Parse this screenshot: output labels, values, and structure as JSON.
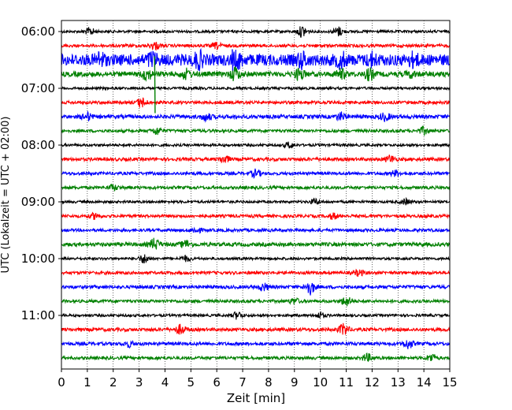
{
  "chart_data": {
    "type": "line",
    "title": "",
    "xlabel": "Zeit  [min]",
    "ylabel": "UTC (Lokalzeit = UTC + 02:00)",
    "xlim": [
      0,
      15
    ],
    "x_ticks": [
      "0",
      "1",
      "2",
      "3",
      "4",
      "5",
      "6",
      "7",
      "8",
      "9",
      "10",
      "11",
      "12",
      "13",
      "14",
      "15"
    ],
    "y_ticks": [
      {
        "label": "06:00",
        "row": 0
      },
      {
        "label": "07:00",
        "row": 4
      },
      {
        "label": "08:00",
        "row": 8
      },
      {
        "label": "09:00",
        "row": 12
      },
      {
        "label": "10:00",
        "row": 16
      },
      {
        "label": "11:00",
        "row": 20
      }
    ],
    "grid": "vertical dotted at each minute",
    "colors": [
      "#000000",
      "#ff0000",
      "#0000ff",
      "#008000"
    ],
    "series": [
      {
        "start": "06:00",
        "color": "#000000",
        "amplitude": 1.0,
        "bursts": [
          [
            1.1,
            2.0
          ],
          [
            9.3,
            3.0
          ],
          [
            10.7,
            2.5
          ]
        ]
      },
      {
        "start": "06:15",
        "color": "#ff0000",
        "amplitude": 1.2,
        "bursts": [
          [
            3.6,
            2.0
          ],
          [
            6.0,
            1.5
          ]
        ]
      },
      {
        "start": "06:30",
        "color": "#0000ff",
        "amplitude": 4.5,
        "bursts": [
          [
            1.5,
            3.0
          ],
          [
            3.5,
            3.0
          ],
          [
            5.3,
            3.5
          ],
          [
            6.8,
            3.2
          ],
          [
            9.3,
            3.0
          ],
          [
            10.8,
            3.0
          ],
          [
            12.0,
            2.5
          ],
          [
            13.6,
            2.5
          ]
        ]
      },
      {
        "start": "06:45",
        "color": "#008000",
        "amplitude": 2.0,
        "bursts": [
          [
            3.3,
            3.0
          ],
          [
            4.8,
            2.5
          ],
          [
            6.7,
            3.5
          ],
          [
            9.2,
            3.0
          ],
          [
            10.8,
            2.5
          ],
          [
            11.9,
            3.0
          ],
          [
            13.5,
            1.5
          ]
        ]
      },
      {
        "start": "07:00",
        "color": "#000000",
        "amplitude": 1.0,
        "bursts": []
      },
      {
        "start": "07:15",
        "color": "#ff0000",
        "amplitude": 1.2,
        "bursts": [
          [
            3.1,
            2.5
          ]
        ]
      },
      {
        "start": "07:30",
        "color": "#0000ff",
        "amplitude": 1.5,
        "bursts": [
          [
            1.0,
            2.0
          ],
          [
            5.6,
            2.0
          ],
          [
            10.8,
            2.0
          ],
          [
            12.5,
            2.0
          ]
        ]
      },
      {
        "start": "07:45",
        "color": "#008000",
        "amplitude": 1.2,
        "bursts": [
          [
            3.7,
            2.0
          ],
          [
            14.0,
            2.0
          ]
        ]
      },
      {
        "start": "08:00",
        "color": "#000000",
        "amplitude": 1.0,
        "bursts": [
          [
            8.8,
            1.5
          ]
        ]
      },
      {
        "start": "08:15",
        "color": "#ff0000",
        "amplitude": 1.3,
        "bursts": [
          [
            6.3,
            2.0
          ],
          [
            12.7,
            2.0
          ]
        ]
      },
      {
        "start": "08:30",
        "color": "#0000ff",
        "amplitude": 1.2,
        "bursts": [
          [
            7.5,
            2.0
          ],
          [
            12.9,
            1.5
          ]
        ]
      },
      {
        "start": "08:45",
        "color": "#008000",
        "amplitude": 1.2,
        "bursts": [
          [
            2.0,
            1.5
          ]
        ]
      },
      {
        "start": "09:00",
        "color": "#000000",
        "amplitude": 1.0,
        "bursts": [
          [
            9.8,
            1.5
          ],
          [
            13.3,
            1.5
          ]
        ]
      },
      {
        "start": "09:15",
        "color": "#ff0000",
        "amplitude": 1.2,
        "bursts": [
          [
            1.3,
            1.5
          ],
          [
            10.5,
            1.5
          ]
        ]
      },
      {
        "start": "09:30",
        "color": "#0000ff",
        "amplitude": 1.2,
        "bursts": [
          [
            5.2,
            1.5
          ]
        ]
      },
      {
        "start": "09:45",
        "color": "#008000",
        "amplitude": 1.5,
        "bursts": [
          [
            3.6,
            3.0
          ],
          [
            4.8,
            2.0
          ]
        ]
      },
      {
        "start": "10:00",
        "color": "#000000",
        "amplitude": 1.0,
        "bursts": [
          [
            3.2,
            2.5
          ],
          [
            4.8,
            1.5
          ]
        ]
      },
      {
        "start": "10:15",
        "color": "#ff0000",
        "amplitude": 1.2,
        "bursts": [
          [
            11.5,
            1.5
          ]
        ]
      },
      {
        "start": "10:30",
        "color": "#0000ff",
        "amplitude": 1.3,
        "bursts": [
          [
            7.8,
            2.0
          ],
          [
            9.6,
            4.0
          ]
        ]
      },
      {
        "start": "10:45",
        "color": "#008000",
        "amplitude": 1.2,
        "bursts": [
          [
            11.0,
            2.5
          ],
          [
            9.0,
            1.5
          ]
        ]
      },
      {
        "start": "11:00",
        "color": "#000000",
        "amplitude": 1.0,
        "bursts": [
          [
            6.8,
            2.0
          ],
          [
            10.0,
            1.5
          ]
        ]
      },
      {
        "start": "11:15",
        "color": "#ff0000",
        "amplitude": 1.3,
        "bursts": [
          [
            4.6,
            2.5
          ],
          [
            10.9,
            3.0
          ]
        ]
      },
      {
        "start": "11:30",
        "color": "#0000ff",
        "amplitude": 1.3,
        "bursts": [
          [
            2.6,
            1.5
          ],
          [
            13.4,
            2.5
          ]
        ]
      },
      {
        "start": "11:45",
        "color": "#008000",
        "amplitude": 1.2,
        "bursts": [
          [
            11.8,
            2.0
          ],
          [
            14.3,
            2.0
          ]
        ]
      }
    ],
    "spikes": [
      {
        "series": 3,
        "x": 3.6,
        "color": "#008000",
        "reach_rows": [
          -2.5,
          5.5
        ]
      },
      {
        "series": 2,
        "x": 6.6,
        "color": "#0000ff",
        "reach_rows": [
          -1.5,
          1.5
        ]
      }
    ]
  }
}
